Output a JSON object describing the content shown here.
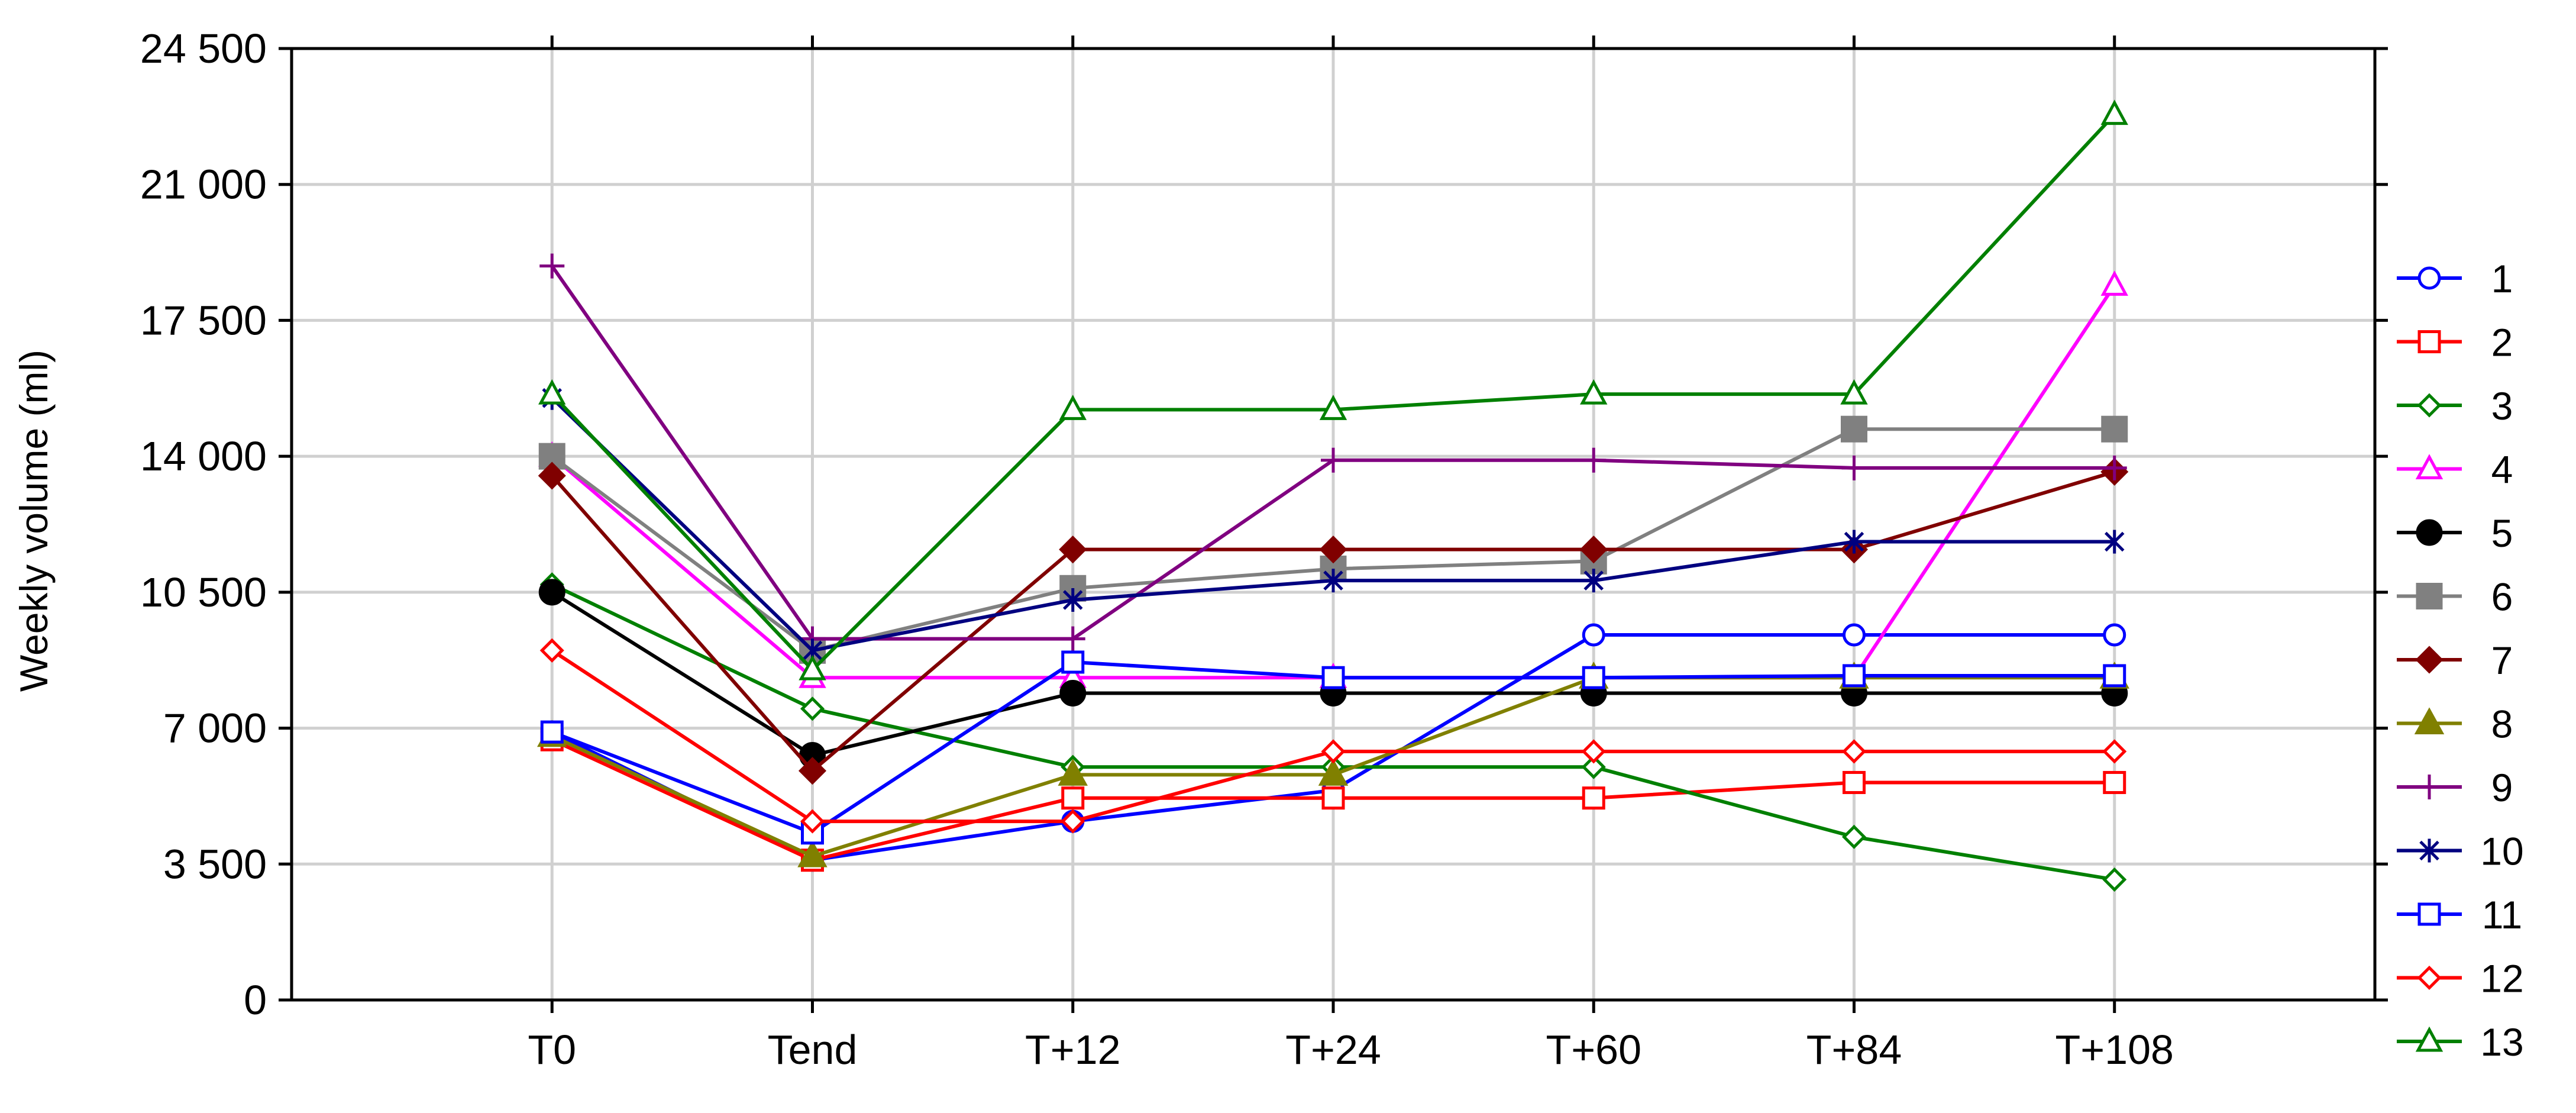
{
  "chart_data": {
    "type": "line",
    "title": "",
    "xlabel": "",
    "ylabel": "Weekly volume (ml)",
    "categories": [
      "T0",
      "Tend",
      "T+12",
      "T+24",
      "T+60",
      "T+84",
      "T+108"
    ],
    "ylim": [
      0,
      24500
    ],
    "yticks": [
      0,
      3500,
      7000,
      10500,
      14000,
      17500,
      21000,
      24500
    ],
    "ytick_labels": [
      "0",
      "3 500",
      "7 000",
      "10 500",
      "14 000",
      "17 500",
      "21 000",
      "24 500"
    ],
    "grid": true,
    "legend_position": "right",
    "series": [
      {
        "name": "1",
        "color": "#0000ff",
        "marker": "circle-open",
        "values": [
          6900,
          3600,
          4600,
          5400,
          9400,
          9400,
          9400
        ]
      },
      {
        "name": "2",
        "color": "#ff0000",
        "marker": "square-open",
        "values": [
          6700,
          3600,
          5200,
          5200,
          5200,
          5600,
          5600
        ]
      },
      {
        "name": "3",
        "color": "#008000",
        "marker": "diamond-open",
        "values": [
          10700,
          7500,
          6000,
          6000,
          6000,
          4200,
          3100
        ]
      },
      {
        "name": "4",
        "color": "#ff00ff",
        "marker": "triangle-open",
        "values": [
          14000,
          8300,
          8300,
          8300,
          8300,
          8300,
          18400
        ]
      },
      {
        "name": "5",
        "color": "#000000",
        "marker": "circle-filled",
        "values": [
          10500,
          6300,
          7900,
          7900,
          7900,
          7900,
          7900
        ]
      },
      {
        "name": "6",
        "color": "#808080",
        "marker": "square-filled",
        "values": [
          14000,
          9000,
          10600,
          11100,
          11300,
          14700,
          14700
        ]
      },
      {
        "name": "7",
        "color": "#800000",
        "marker": "diamond-filled",
        "values": [
          13500,
          5900,
          11600,
          11600,
          11600,
          11600,
          13600
        ]
      },
      {
        "name": "8",
        "color": "#808000",
        "marker": "triangle-filled",
        "values": [
          6800,
          3700,
          5800,
          5800,
          8300,
          8300,
          8300
        ]
      },
      {
        "name": "9",
        "color": "#800080",
        "marker": "plus",
        "values": [
          18900,
          9300,
          9300,
          13900,
          13900,
          13700,
          13700
        ]
      },
      {
        "name": "10",
        "color": "#000080",
        "marker": "asterisk",
        "values": [
          15500,
          9000,
          10300,
          10800,
          10800,
          11800,
          11800
        ]
      },
      {
        "name": "11",
        "color": "#0000ff",
        "marker": "square-open",
        "values": [
          6900,
          4300,
          8700,
          8300,
          8300,
          8350,
          8350
        ]
      },
      {
        "name": "12",
        "color": "#ff0000",
        "marker": "diamond-open",
        "values": [
          9000,
          4600,
          4600,
          6400,
          6400,
          6400,
          6400
        ]
      },
      {
        "name": "13",
        "color": "#008000",
        "marker": "triangle-open",
        "values": [
          15600,
          8500,
          15200,
          15200,
          15600,
          15600,
          22800
        ]
      }
    ]
  }
}
